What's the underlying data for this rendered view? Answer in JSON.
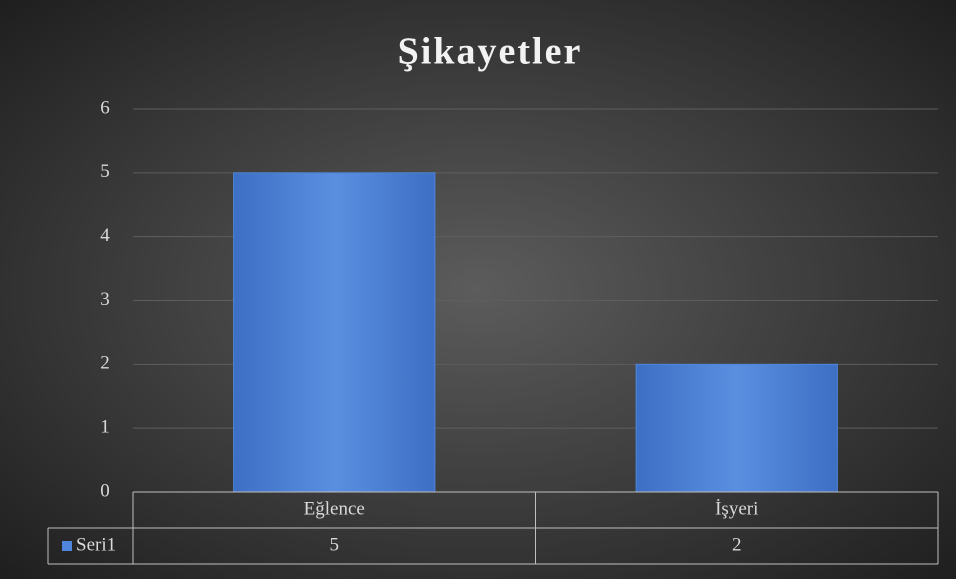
{
  "chart_data": {
    "type": "bar",
    "title": "Şikayetler",
    "categories": [
      "Eğlence",
      "İşyeri"
    ],
    "series": [
      {
        "name": "Seri1",
        "color": "#4f86dc",
        "values": [
          5,
          2
        ]
      }
    ],
    "ylim": [
      0,
      6
    ],
    "yticks": [
      0,
      1,
      2,
      3,
      4,
      5,
      6
    ],
    "grid": true,
    "data_table": true
  }
}
